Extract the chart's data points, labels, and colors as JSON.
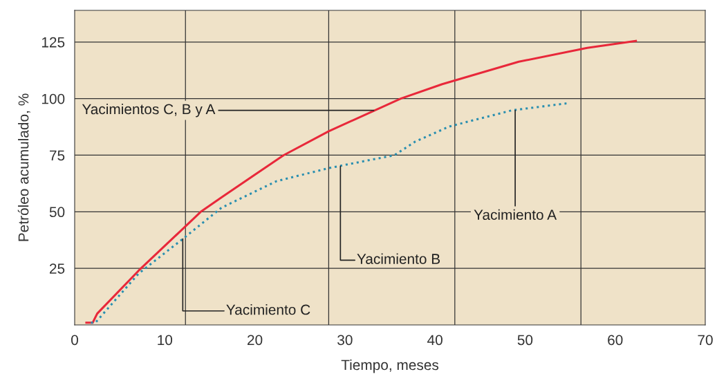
{
  "chart_data": {
    "type": "line",
    "xlabel": "Tiempo, meses",
    "ylabel": "Petróleo acumulado, %",
    "series": [
      {
        "color": "#e8283a",
        "line_style": "solid",
        "x": [
          1.3,
          2.0,
          2.5,
          7.1,
          14.0,
          16.3,
          23.2,
          28.2,
          36.2,
          40.8,
          49.3,
          56.9,
          62.3
        ],
        "values": [
          1,
          1,
          5,
          24,
          50,
          56.4,
          75,
          85.6,
          100,
          106.4,
          116.3,
          122.4,
          125.5
        ]
      },
      {
        "color": "#2a8fb0",
        "line_style": "dotted",
        "x": [
          1.8,
          2.3,
          7.1,
          12.0,
          16.3,
          22.4,
          28.2,
          35.5,
          37.8,
          41.6,
          48.5,
          54.6
        ],
        "values": [
          1,
          1,
          22.7,
          38,
          51.8,
          63.5,
          69.3,
          75,
          81,
          87.7,
          94.8,
          97.9
        ]
      }
    ],
    "xlim": [
      0,
      70
    ],
    "ylim": [
      0,
      139
    ],
    "xticks": [
      0,
      10,
      20,
      30,
      40,
      50,
      60,
      70
    ],
    "yticks": [
      25,
      50,
      75,
      100,
      125
    ],
    "grid": "y",
    "ref_lines": [
      {
        "axis": "x",
        "value": 12.3,
        "color": "#333333"
      },
      {
        "axis": "x",
        "value": 28.2,
        "color": "#333333"
      },
      {
        "axis": "x",
        "value": 42.2,
        "color": "#333333"
      },
      {
        "axis": "x",
        "value": 56.2,
        "color": "#333333"
      }
    ],
    "annotations": [
      {
        "text": "Yacimientos C, B y A",
        "x": 33.2,
        "y": 94.8
      },
      {
        "text": "Yacimiento A",
        "x": 48.9,
        "y": 94.8
      },
      {
        "text": "Yacimiento B",
        "x": 29.5,
        "y": 70.2
      },
      {
        "text": "Yacimiento C",
        "x": 12.0,
        "y": 38
      }
    ]
  }
}
